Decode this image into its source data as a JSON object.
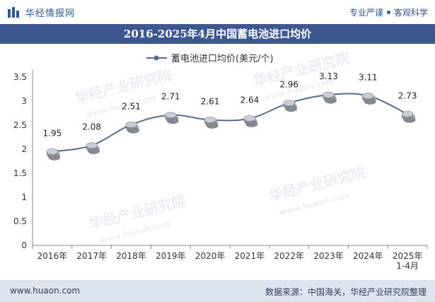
{
  "header": {
    "brand_name": "华经情报网",
    "tag1": "专业严谨",
    "tag2": "客观科学"
  },
  "title": "2016-2025年4月中国蓄电池进口均价",
  "watermark": {
    "cn": "华经产业研究院",
    "en": "www.huaon.com"
  },
  "footer": {
    "website": "www.huaon.com",
    "source": "数据来源：中国海关，华经产业研究院整理"
  },
  "chart_data": {
    "type": "line",
    "title": "2016-2025年4月中国蓄电池进口均价",
    "legend_position": "top-center",
    "categories": [
      "2016年",
      "2017年",
      "2018年",
      "2019年",
      "2020年",
      "2021年",
      "2022年",
      "2023年",
      "2024年",
      "2025年\n1-4月"
    ],
    "series": [
      {
        "name": "蓄电池进口均价(美元/个)",
        "values": [
          1.95,
          2.08,
          2.51,
          2.71,
          2.61,
          2.64,
          2.96,
          3.13,
          3.11,
          2.73
        ],
        "color": "#5a6a8c"
      }
    ],
    "value_labels": [
      "1.95",
      "2.08",
      "2.51",
      "2.71",
      "2.61",
      "2.64",
      "2.96",
      "3.13",
      "3.11",
      "2.73"
    ],
    "yticks": [
      "0",
      "0.5",
      "1",
      "1.5",
      "2",
      "2.5",
      "3",
      "3.5"
    ],
    "ylim": [
      0,
      3.5
    ],
    "xlabel": "",
    "ylabel": "",
    "grid": false
  }
}
